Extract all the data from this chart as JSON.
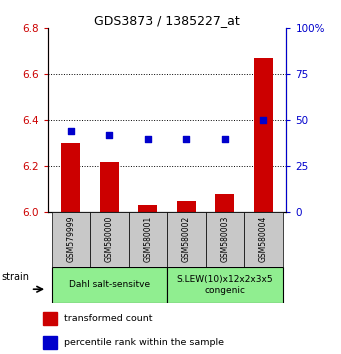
{
  "title": "GDS3873 / 1385227_at",
  "samples": [
    "GSM579999",
    "GSM580000",
    "GSM580001",
    "GSM580002",
    "GSM580003",
    "GSM580004"
  ],
  "transformed_counts": [
    6.3,
    6.22,
    6.03,
    6.05,
    6.08,
    6.67
  ],
  "percentile_ranks": [
    44,
    42,
    40,
    40,
    40,
    50
  ],
  "ylim_left": [
    6.0,
    6.8
  ],
  "ylim_right": [
    0,
    100
  ],
  "yticks_left": [
    6.0,
    6.2,
    6.4,
    6.6,
    6.8
  ],
  "yticks_right": [
    0,
    25,
    50,
    75,
    100
  ],
  "group1_label": "Dahl salt-sensitve",
  "group2_label": "S.LEW(10)x12x2x3x5\ncongenic",
  "group_color": "#90EE90",
  "bar_color": "#CC0000",
  "dot_color": "#0000CC",
  "bar_width": 0.5,
  "left_tick_color": "#CC0000",
  "right_tick_color": "#0000CC",
  "tick_label_bg": "#C8C8C8",
  "legend_items": [
    {
      "color": "#CC0000",
      "label": "transformed count"
    },
    {
      "color": "#0000CC",
      "label": "percentile rank within the sample"
    }
  ]
}
